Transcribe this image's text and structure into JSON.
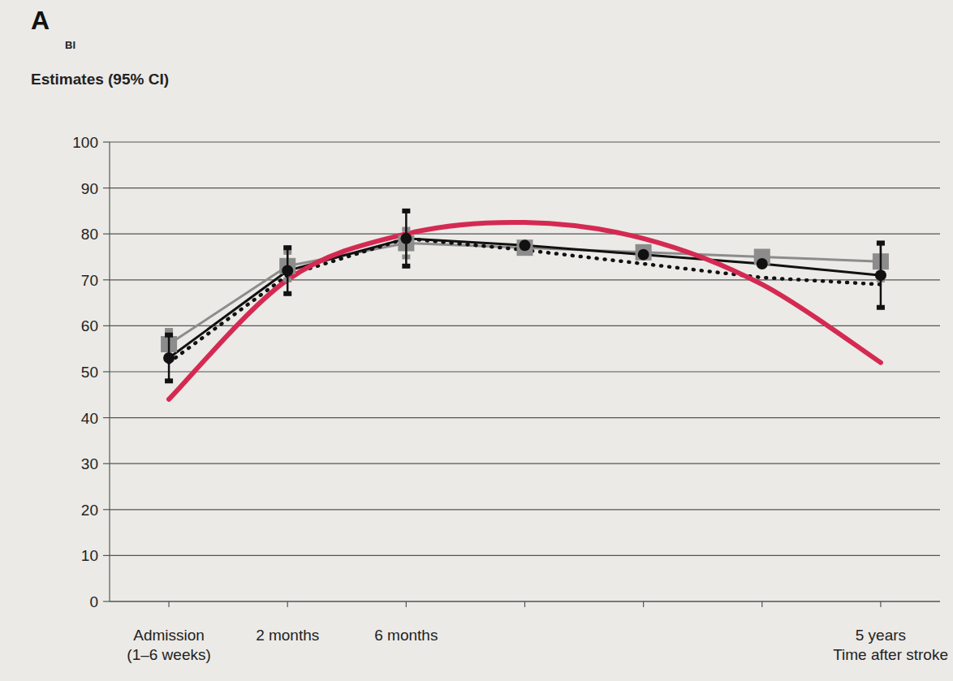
{
  "chart_data": {
    "type": "line",
    "panel": "A",
    "ylabel": "BI",
    "ylabel_detail": "Estimates (95% CI)",
    "xlabel": "Time after stroke",
    "categories": [
      "Admission (1–6 weeks)",
      "2 months",
      "6 months",
      null,
      null,
      null,
      "5 years"
    ],
    "ylim": [
      0,
      100
    ],
    "yticks": [
      0,
      10,
      20,
      30,
      40,
      50,
      60,
      70,
      80,
      90,
      100
    ],
    "grid": true,
    "series": [
      {
        "color": "#8c8c8c",
        "marker": "square",
        "line_style": "solid",
        "values": [
          56,
          73,
          78,
          77,
          76,
          75,
          74
        ],
        "error": [
          3,
          3,
          3,
          null,
          null,
          null,
          4
        ]
      },
      {
        "color": "#111111",
        "marker": "circle",
        "line_style": "solid",
        "values": [
          53,
          72,
          79,
          77.5,
          75.5,
          73.5,
          71
        ],
        "error": [
          5,
          5,
          6,
          null,
          null,
          null,
          7
        ]
      },
      {
        "color": "#111111",
        "marker": "none",
        "line_style": "dotted",
        "values": [
          52,
          71,
          79,
          76.5,
          73.5,
          70.5,
          69
        ]
      },
      {
        "color": "#d42a52",
        "marker": "none",
        "line_style": "smooth",
        "values": [
          44,
          70,
          80,
          82.5,
          79,
          69,
          52
        ]
      }
    ]
  }
}
